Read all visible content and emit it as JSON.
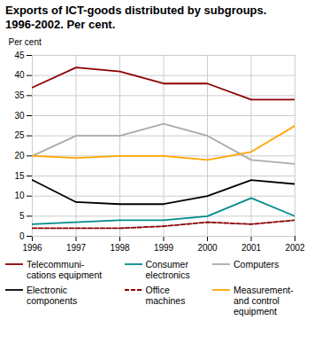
{
  "chart_data": {
    "type": "line",
    "title": "Exports of ICT-goods distributed by subgroups.\n1996-2002. Per cent.",
    "ylabel": "Per cent",
    "x": [
      1996,
      1997,
      1998,
      1999,
      2000,
      2001,
      2002
    ],
    "xlim": [
      1996,
      2002
    ],
    "xticks": [
      1996,
      1997,
      1998,
      1999,
      2000,
      2001,
      2002
    ],
    "ylim": [
      0,
      45
    ],
    "yticks": [
      0,
      5,
      10,
      15,
      20,
      25,
      30,
      35,
      40,
      45
    ],
    "grid": true,
    "series": [
      {
        "name": "Telecommuni-\ncations equipment",
        "color": "#8B0000",
        "line_style": "solid",
        "values": [
          37,
          42,
          41,
          38,
          38,
          34,
          34
        ]
      },
      {
        "name": "Consumer\nelectronics",
        "color": "#008B8B",
        "line_style": "solid",
        "values": [
          3,
          3.5,
          4,
          4,
          5,
          9.5,
          5
        ]
      },
      {
        "name": "Computers",
        "color": "#AAAAAA",
        "line_style": "solid",
        "values": [
          20,
          25,
          25,
          28,
          25,
          19,
          18
        ]
      },
      {
        "name": "Electronic\ncomponents",
        "color": "#000000",
        "line_style": "solid",
        "values": [
          14,
          8.5,
          8,
          8,
          10,
          14,
          13
        ]
      },
      {
        "name": "Office\nmachines",
        "color": "#8B0000",
        "line_style": "dashed",
        "values": [
          2,
          2,
          2,
          2.5,
          3.5,
          3,
          4
        ]
      },
      {
        "name": "Measurement-\nand control\nequipment",
        "color": "#FFA500",
        "line_style": "solid",
        "values": [
          20,
          19.5,
          20,
          20,
          19,
          21,
          27.5
        ]
      }
    ]
  }
}
